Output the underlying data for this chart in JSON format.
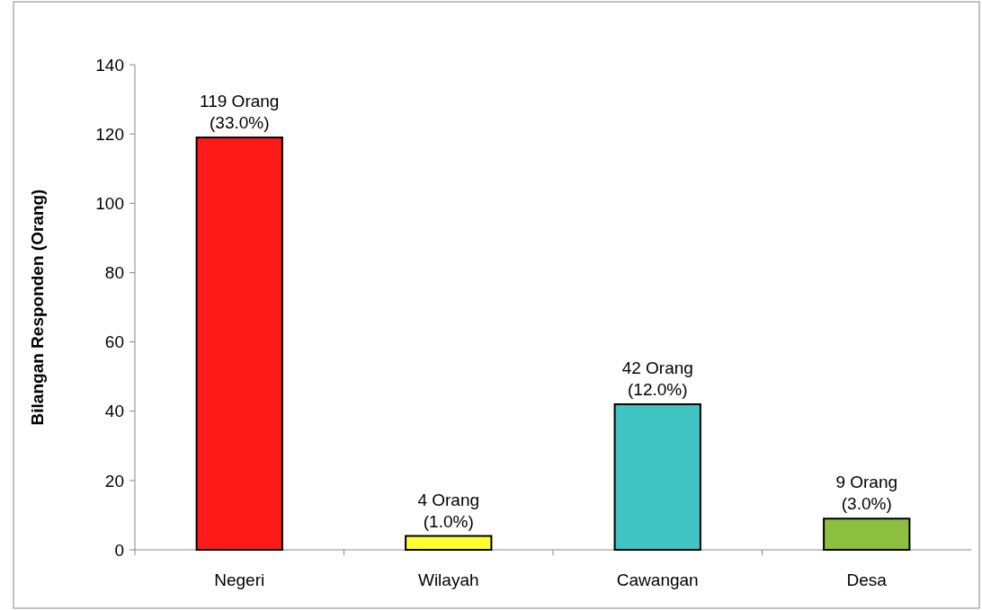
{
  "chart_data": {
    "type": "bar",
    "ylabel": "Bilangan Responden (Orang)",
    "categories": [
      "Negeri",
      "Wilayah",
      "Cawangan",
      "Desa"
    ],
    "values": [
      119,
      4,
      42,
      9
    ],
    "colors": [
      "#ff1a1a",
      "#ffff33",
      "#40c4c4",
      "#8cbf3f"
    ],
    "value_labels": [
      "119 Orang\n(33.0%)",
      "4 Orang\n(1.0%)",
      "42 Orang\n(12.0%)",
      "9 Orang\n(3.0%)"
    ],
    "ylim": [
      0,
      140
    ],
    "yticks": [
      0,
      20,
      40,
      60,
      80,
      100,
      120,
      140
    ],
    "grid": false
  }
}
